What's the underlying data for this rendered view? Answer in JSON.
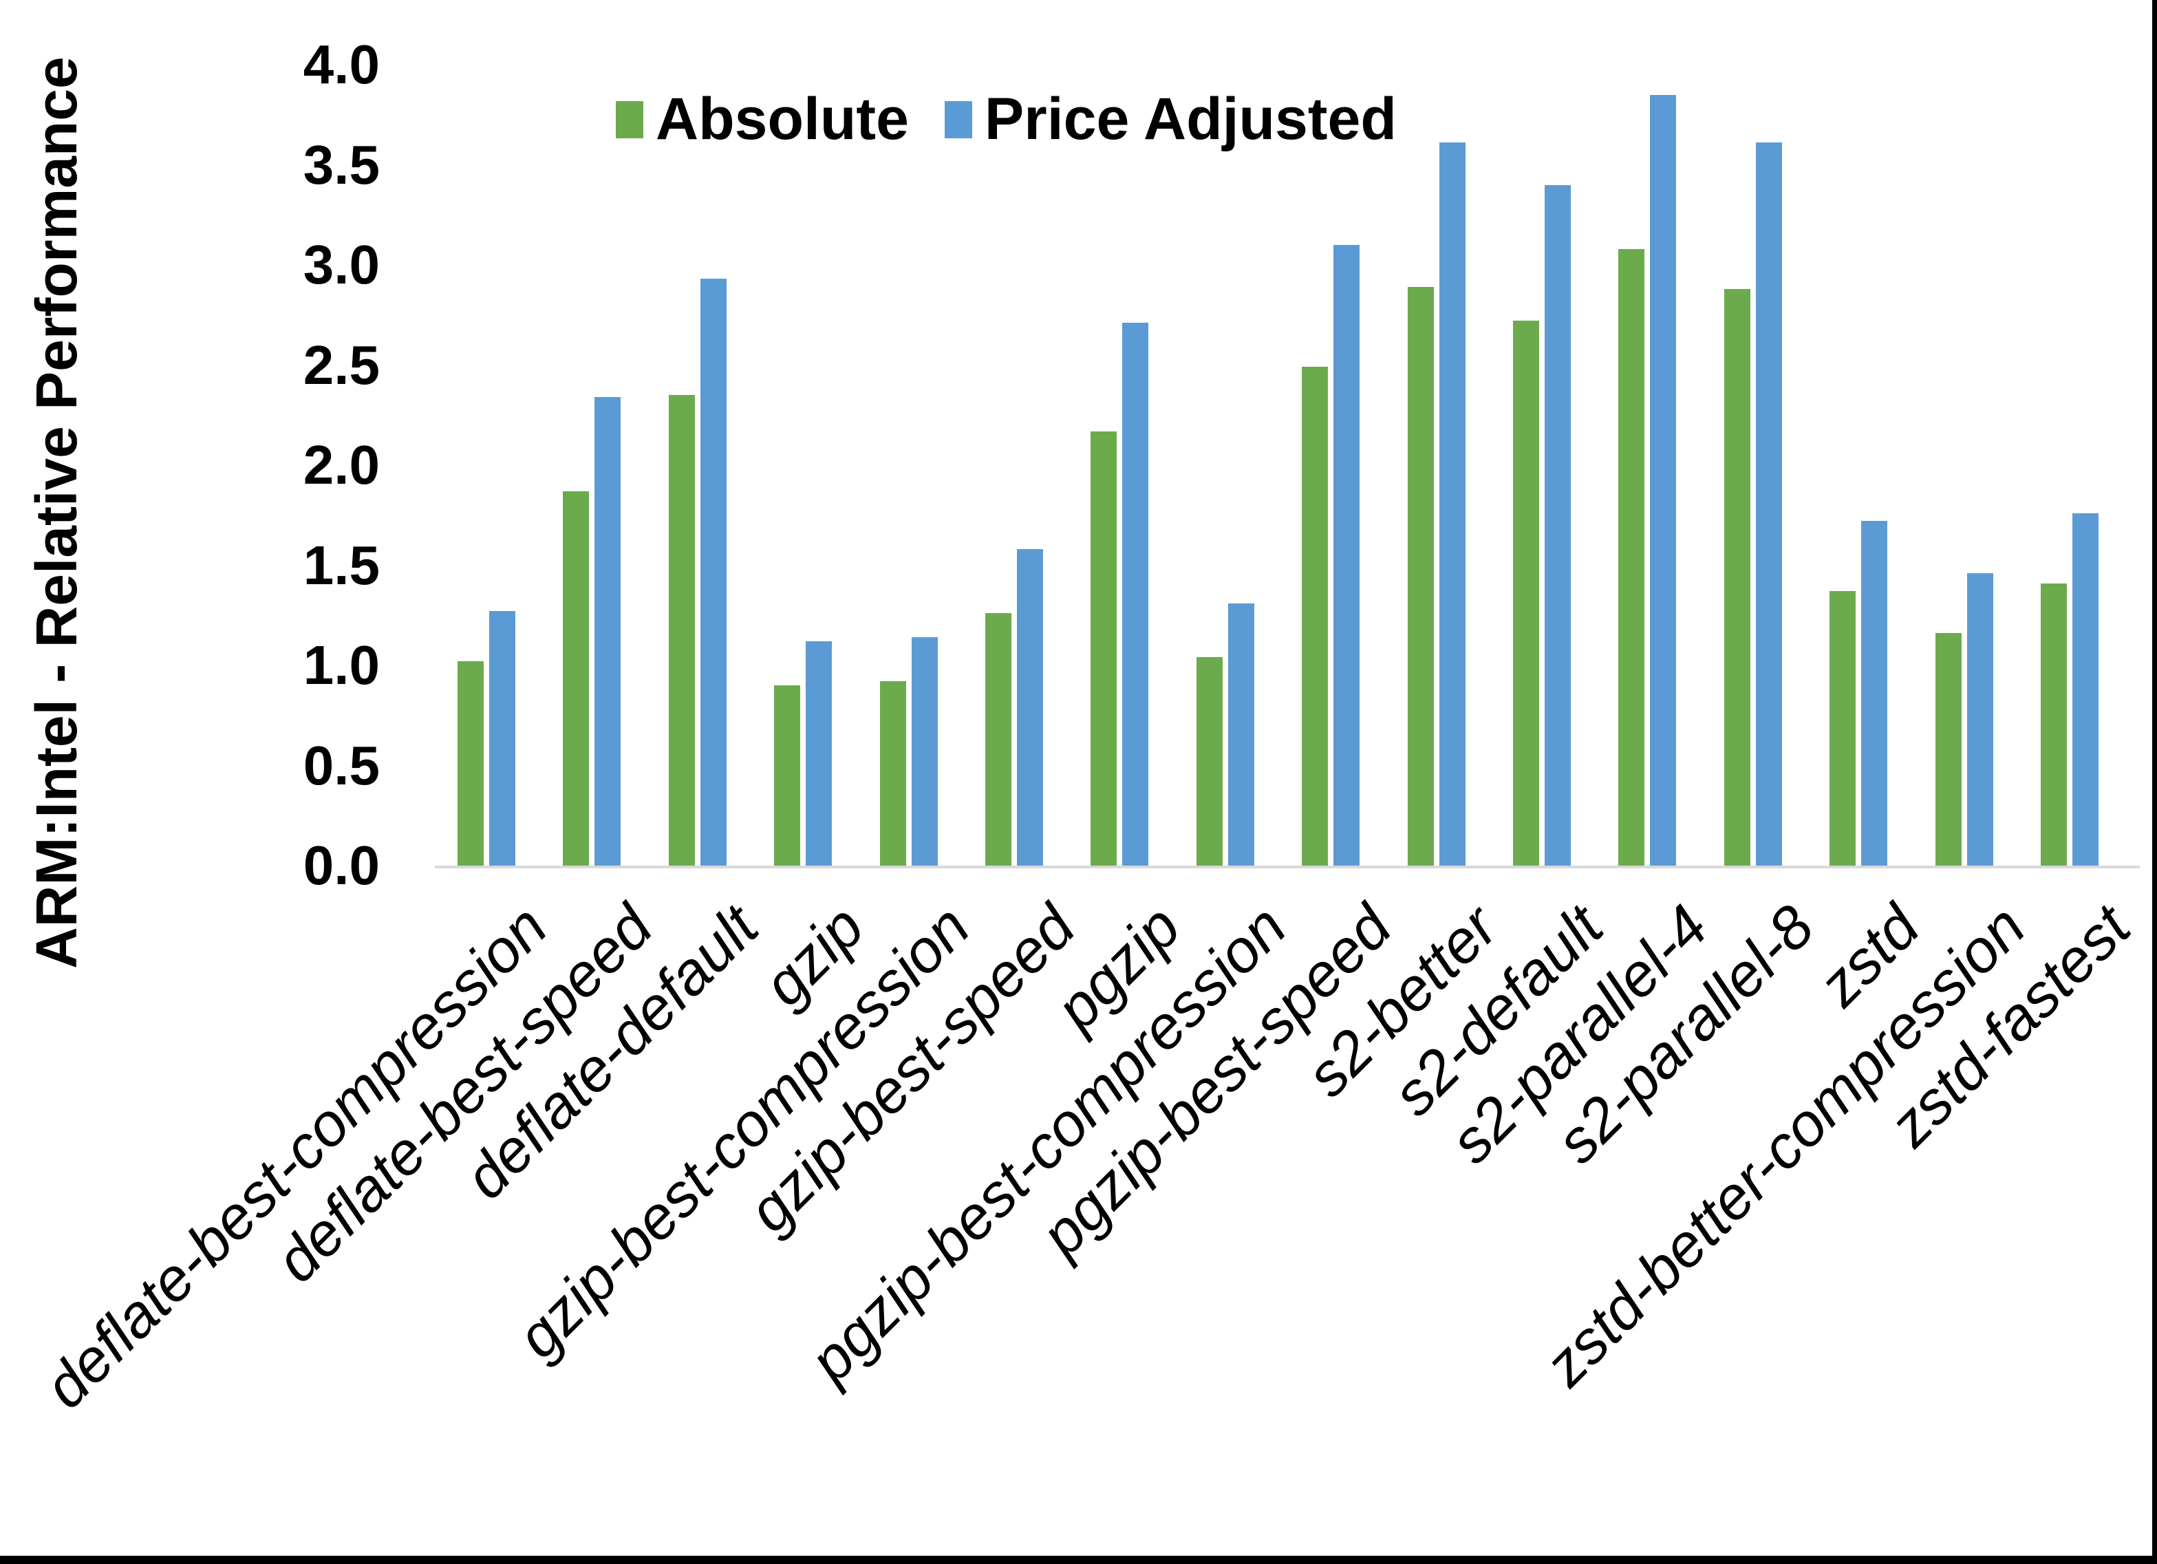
{
  "chart_data": {
    "type": "bar",
    "title": "",
    "xlabel": "",
    "ylabel": "ARM:Intel - Relative Performance",
    "ylim": [
      0.0,
      4.0
    ],
    "ytick_step": 0.5,
    "ytick_labels": [
      "0.0",
      "0.5",
      "1.0",
      "1.5",
      "2.0",
      "2.5",
      "3.0",
      "3.5",
      "4.0"
    ],
    "grid": false,
    "legend_position": "top-center",
    "categories": [
      "deflate-best-compression",
      "deflate-best-speed",
      "deflate-default",
      "gzip",
      "gzip-best-compression",
      "gzip-best-speed",
      "pgzip",
      "pgzip-best-compression",
      "pgzip-best-speed",
      "s2-better",
      "s2-default",
      "s2-parallel-4",
      "s2-parallel-8",
      "zstd",
      "zstd-better-compression",
      "zstd-fastest"
    ],
    "series": [
      {
        "name": "Absolute",
        "color": "#6CAB4C",
        "values": [
          1.02,
          1.87,
          2.35,
          0.9,
          0.92,
          1.26,
          2.17,
          1.04,
          2.49,
          2.89,
          2.72,
          3.08,
          2.88,
          1.37,
          1.16,
          1.41
        ]
      },
      {
        "name": "Price Adjusted",
        "color": "#5B9BD5",
        "values": [
          1.27,
          2.34,
          2.93,
          1.12,
          1.14,
          1.58,
          2.71,
          1.31,
          3.1,
          3.61,
          3.4,
          3.85,
          3.61,
          1.72,
          1.46,
          1.76
        ]
      }
    ]
  },
  "frame": {
    "right_border_color": "#000000",
    "bottom_border_color": "#000000",
    "axis_line_color": "#d9d9d9",
    "background": "#ffffff"
  }
}
